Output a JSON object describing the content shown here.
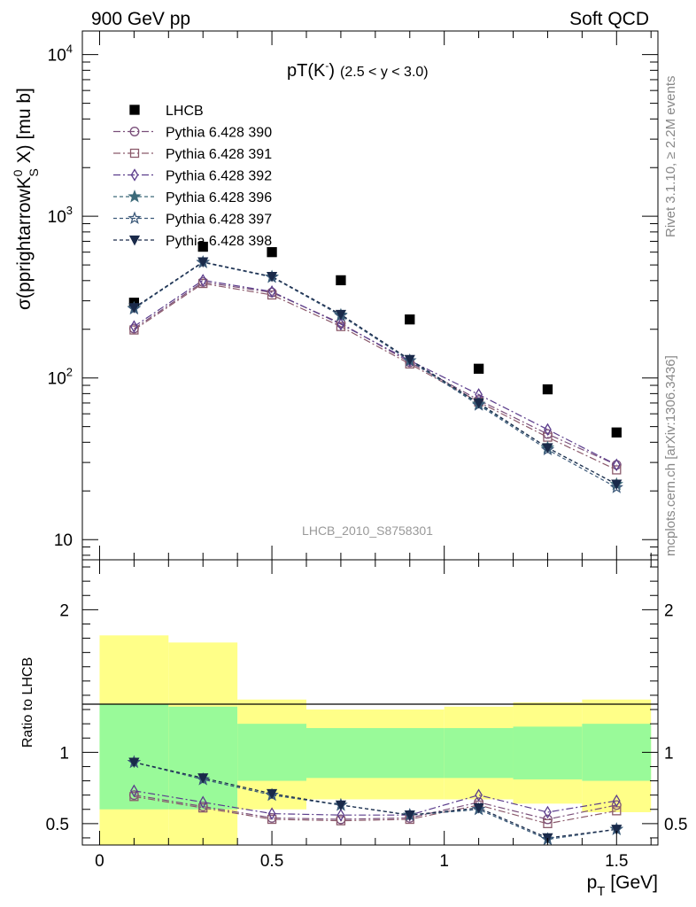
{
  "header": {
    "left": "900 GeV pp",
    "right": "Soft QCD"
  },
  "side_labels": {
    "rivet": "Rivet 3.1.10, ≥ 2.2M events",
    "source": "mcplots.cern.ch [arXiv:1306.3436]"
  },
  "analysis_id": "LHCB_2010_S8758301",
  "colors": {
    "band_inner": "#99fa99",
    "band_outer": "#ffff88",
    "data": "#000000",
    "p390": "#7a4f7a",
    "p391": "#8b5a6b",
    "p392": "#5b3d8c",
    "p396": "#3d6b7a",
    "p397": "#3d5a7a",
    "p398": "#1a2a4a"
  },
  "chart_data": [
    {
      "type": "scatter",
      "title": "pT(K) (2.5 < y < 3.0)",
      "title_main": "pT(K",
      "title_sup": "-",
      "title_close": ")",
      "title_range": "(2.5 < y < 3.0)",
      "ylabel": "σ(pprightarrowK",
      "ylabel_sup": "0",
      "ylabel_sub": "S",
      "ylabel_tail": " X) [mu b]",
      "yscale": "log",
      "ylim": [
        7.5,
        14000
      ],
      "xlim": [
        -0.05,
        1.62
      ],
      "ytick_labels": [
        "10",
        "10",
        "10",
        "10"
      ],
      "ytick_sups": [
        "",
        "2",
        "3",
        "4"
      ],
      "x": [
        0.1,
        0.3,
        0.5,
        0.7,
        0.9,
        1.1,
        1.3,
        1.5
      ],
      "series": [
        {
          "name": "LHCB",
          "key": "data",
          "marker": "square",
          "dash": "",
          "values": [
            292,
            648,
            600,
            402,
            230,
            114,
            85,
            46
          ]
        },
        {
          "name": "Pythia 6.428 390",
          "key": "p390",
          "marker": "circle",
          "dash": "8,3,2,3",
          "values": [
            202,
            392,
            338,
            218,
            125,
            73,
            45,
            29
          ]
        },
        {
          "name": "Pythia 6.428 391",
          "key": "p391",
          "marker": "square-open",
          "dash": "8,3,2,3",
          "values": [
            198,
            384,
            326,
            208,
            122,
            71,
            43,
            27
          ]
        },
        {
          "name": "Pythia 6.428 392",
          "key": "p392",
          "marker": "diamond",
          "dash": "8,3,2,3",
          "values": [
            208,
            402,
            342,
            215,
            128,
            79,
            48,
            29
          ]
        },
        {
          "name": "Pythia 6.428 396",
          "key": "p396",
          "marker": "star",
          "dash": "4,3",
          "values": [
            270,
            520,
            422,
            245,
            128,
            69,
            37,
            22
          ]
        },
        {
          "name": "Pythia 6.428 397",
          "key": "p397",
          "marker": "star-open",
          "dash": "4,3",
          "values": [
            268,
            518,
            420,
            243,
            128,
            68,
            36,
            21
          ]
        },
        {
          "name": "Pythia 6.428 398",
          "key": "p398",
          "marker": "triangle-down",
          "dash": "4,3",
          "values": [
            272,
            522,
            424,
            247,
            130,
            70,
            37,
            22
          ]
        }
      ]
    },
    {
      "type": "scatter",
      "ylabel": "Ratio to LHCB",
      "xlabel": "p",
      "xlabel_sub": "T",
      "xlabel_unit": " [GeV]",
      "ylim": [
        0.35,
        2.35
      ],
      "xlim": [
        -0.05,
        1.62
      ],
      "xtick_labels": [
        "0",
        "0.5",
        "1",
        "1.5"
      ],
      "xtick_values": [
        0,
        0.5,
        1,
        1.5
      ],
      "ytick_labels": [
        "0.5",
        "1",
        "2"
      ],
      "ytick_values": [
        0.5,
        1,
        2
      ],
      "bands": [
        {
          "x": [
            0.0,
            0.2
          ],
          "inner": [
            0.6,
            1.34
          ],
          "outer": [
            0.0,
            1.82
          ]
        },
        {
          "x": [
            0.2,
            0.4
          ],
          "inner": [
            0.6,
            1.32
          ],
          "outer": [
            0.0,
            1.77
          ]
        },
        {
          "x": [
            0.4,
            0.6
          ],
          "inner": [
            0.8,
            1.2
          ],
          "outer": [
            0.6,
            1.37
          ]
        },
        {
          "x": [
            0.6,
            1.0
          ],
          "inner": [
            0.82,
            1.17
          ],
          "outer": [
            0.67,
            1.3
          ]
        },
        {
          "x": [
            1.0,
            1.2
          ],
          "inner": [
            0.82,
            1.17
          ],
          "outer": [
            0.67,
            1.32
          ]
        },
        {
          "x": [
            1.2,
            1.4
          ],
          "inner": [
            0.81,
            1.18
          ],
          "outer": [
            0.64,
            1.35
          ]
        },
        {
          "x": [
            1.4,
            1.6
          ],
          "inner": [
            0.8,
            1.2
          ],
          "outer": [
            0.58,
            1.37
          ]
        }
      ],
      "series": [
        {
          "name": "Pythia 6.428 390",
          "key": "p390",
          "marker": "circle",
          "dash": "8,3,2,3",
          "values": [
            0.7,
            0.62,
            0.54,
            0.53,
            0.54,
            0.65,
            0.53,
            0.63
          ]
        },
        {
          "name": "Pythia 6.428 391",
          "key": "p391",
          "marker": "square-open",
          "dash": "8,3,2,3",
          "values": [
            0.69,
            0.61,
            0.53,
            0.52,
            0.53,
            0.63,
            0.5,
            0.59
          ]
        },
        {
          "name": "Pythia 6.428 392",
          "key": "p392",
          "marker": "diamond",
          "dash": "8,3,2,3",
          "values": [
            0.73,
            0.65,
            0.57,
            0.56,
            0.56,
            0.7,
            0.58,
            0.66
          ]
        },
        {
          "name": "Pythia 6.428 396",
          "key": "p396",
          "marker": "star",
          "dash": "4,3",
          "values": [
            0.93,
            0.81,
            0.7,
            0.63,
            0.56,
            0.6,
            0.39,
            0.46
          ]
        },
        {
          "name": "Pythia 6.428 397",
          "key": "p397",
          "marker": "star-open",
          "dash": "4,3",
          "values": [
            0.93,
            0.81,
            0.7,
            0.63,
            0.56,
            0.6,
            0.39,
            0.46
          ]
        },
        {
          "name": "Pythia 6.428 398",
          "key": "p398",
          "marker": "triangle-down",
          "dash": "4,3",
          "values": [
            0.93,
            0.82,
            0.71,
            0.63,
            0.56,
            0.61,
            0.4,
            0.46
          ]
        }
      ]
    }
  ]
}
